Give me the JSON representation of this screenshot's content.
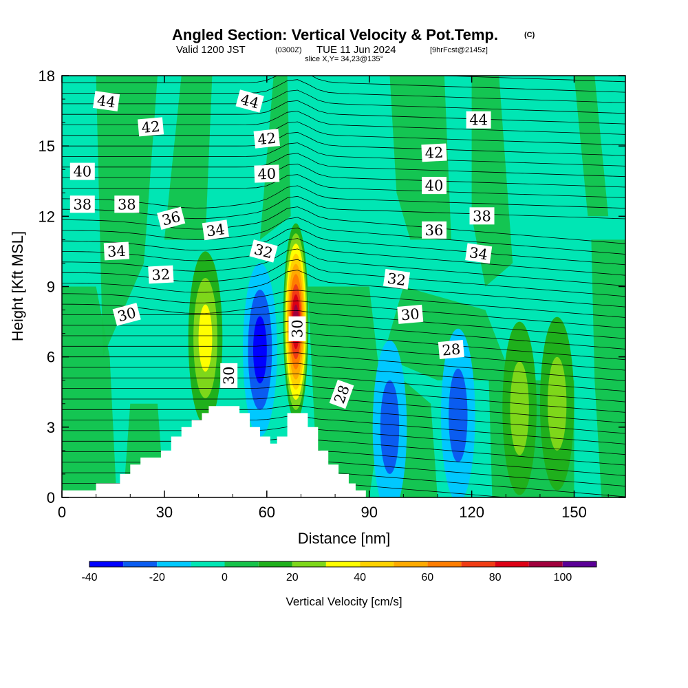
{
  "title": {
    "main": "Angled Section: Vertical Velocity & Pot.Temp.",
    "copyright": "(C)",
    "valid_prefix": "Valid 1200 JST",
    "valid_utc": "(0300Z)",
    "valid_date": "TUE 11 Jun 2024",
    "forecast": "[9hrFcst@2145z]",
    "slice": "slice X,Y= 34,23@135°"
  },
  "chart_data": {
    "type": "heatmap",
    "xlabel": "Distance [nm]",
    "ylabel": "Height [Kft MSL]",
    "xlim": [
      0,
      165
    ],
    "ylim": [
      0,
      18
    ],
    "x_ticks": [
      0,
      30,
      60,
      90,
      120,
      150
    ],
    "y_ticks": [
      0,
      3,
      6,
      9,
      12,
      15,
      18
    ],
    "colorbar": {
      "label": "Vertical Velocity [cm/s]",
      "levels": [
        -40,
        -30,
        -20,
        -10,
        0,
        10,
        20,
        30,
        40,
        50,
        60,
        70,
        80,
        90,
        100,
        110
      ],
      "tick_values": [
        -40,
        -20,
        0,
        20,
        40,
        60,
        80,
        100
      ],
      "colors": [
        "#0000ff",
        "#0a5cf0",
        "#00c8ff",
        "#00e6b4",
        "#16c24a",
        "#1fb01c",
        "#7ed71a",
        "#ffff00",
        "#ffd200",
        "#ffaa00",
        "#ff7d00",
        "#f03c14",
        "#dc0014",
        "#a0003c",
        "#5a0096"
      ]
    },
    "terrain_steps": [
      [
        0,
        0.3
      ],
      [
        10,
        0.6
      ],
      [
        17,
        1.0
      ],
      [
        20,
        1.4
      ],
      [
        23,
        1.7
      ],
      [
        29,
        2.0
      ],
      [
        32,
        2.6
      ],
      [
        35,
        3.0
      ],
      [
        38,
        3.3
      ],
      [
        41,
        3.6
      ],
      [
        43,
        3.9
      ],
      [
        52,
        3.6
      ],
      [
        55,
        3.0
      ],
      [
        58,
        2.6
      ],
      [
        61,
        2.3
      ],
      [
        63,
        2.6
      ],
      [
        66,
        3.6
      ],
      [
        72,
        3.0
      ],
      [
        75,
        2.0
      ],
      [
        78,
        1.4
      ],
      [
        81,
        1.0
      ],
      [
        84,
        0.6
      ],
      [
        86,
        0.3
      ],
      [
        89,
        0.0
      ],
      [
        165,
        0.0
      ]
    ],
    "velocity_features": [
      {
        "name": "updraft",
        "x": 42,
        "y": 6.8,
        "value": 35
      },
      {
        "name": "updraft-core",
        "x": 68.5,
        "y": 7.5,
        "value": 90
      },
      {
        "name": "downdraft",
        "x": 58,
        "y": 6.3,
        "value": -38
      },
      {
        "name": "downdraft",
        "x": 96,
        "y": 3.0,
        "value": -25
      },
      {
        "name": "downdraft",
        "x": 116,
        "y": 3.5,
        "value": -22
      },
      {
        "name": "updraft",
        "x": 134,
        "y": 3.8,
        "value": 22
      },
      {
        "name": "updraft",
        "x": 145,
        "y": 4.0,
        "value": 22
      }
    ],
    "isentrope_labels": [
      {
        "value": "44",
        "x": 13,
        "y": 16.9,
        "angle": 8
      },
      {
        "value": "44",
        "x": 55,
        "y": 16.9,
        "angle": 15
      },
      {
        "value": "44",
        "x": 122,
        "y": 16.1,
        "angle": 0
      },
      {
        "value": "42",
        "x": 26,
        "y": 15.8,
        "angle": -5
      },
      {
        "value": "42",
        "x": 60,
        "y": 15.3,
        "angle": -6
      },
      {
        "value": "42",
        "x": 109,
        "y": 14.7,
        "angle": -3
      },
      {
        "value": "40",
        "x": 6,
        "y": 13.9,
        "angle": 0
      },
      {
        "value": "40",
        "x": 60,
        "y": 13.8,
        "angle": -2
      },
      {
        "value": "40",
        "x": 109,
        "y": 13.3,
        "angle": 0
      },
      {
        "value": "38",
        "x": 6,
        "y": 12.5,
        "angle": 0
      },
      {
        "value": "38",
        "x": 19,
        "y": 12.5,
        "angle": 0
      },
      {
        "value": "38",
        "x": 123,
        "y": 12.0,
        "angle": 0
      },
      {
        "value": "36",
        "x": 32,
        "y": 11.9,
        "angle": -15
      },
      {
        "value": "36",
        "x": 109,
        "y": 11.4,
        "angle": 0
      },
      {
        "value": "34",
        "x": 16,
        "y": 10.5,
        "angle": -3
      },
      {
        "value": "34",
        "x": 45,
        "y": 11.4,
        "angle": -8
      },
      {
        "value": "34",
        "x": 122,
        "y": 10.4,
        "angle": 8
      },
      {
        "value": "32",
        "x": 29,
        "y": 9.5,
        "angle": -3
      },
      {
        "value": "32",
        "x": 59,
        "y": 10.5,
        "angle": 15
      },
      {
        "value": "32",
        "x": 98,
        "y": 9.3,
        "angle": 8
      },
      {
        "value": "30",
        "x": 19,
        "y": 7.8,
        "angle": -15
      },
      {
        "value": "30",
        "x": 69,
        "y": 7.2,
        "angle": -90
      },
      {
        "value": "30",
        "x": 49,
        "y": 5.2,
        "angle": -90
      },
      {
        "value": "30",
        "x": 102,
        "y": 7.8,
        "angle": -5
      },
      {
        "value": "28",
        "x": 82,
        "y": 4.4,
        "angle": -70
      },
      {
        "value": "28",
        "x": 114,
        "y": 6.3,
        "angle": -5
      }
    ]
  }
}
